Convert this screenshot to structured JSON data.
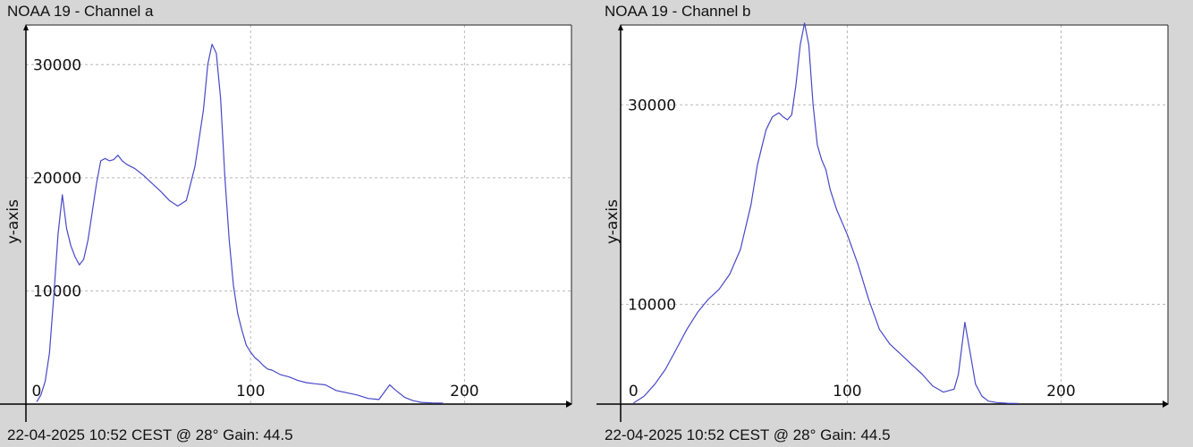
{
  "chart_data": [
    {
      "type": "line",
      "title": "NOAA 19 - Channel a",
      "footer": "22-04-2025 10:52 CEST @ 28° Gain: 44.5",
      "ylabel": "y-axis",
      "xlim": [
        -5,
        250
      ],
      "ylim": [
        0,
        33500
      ],
      "xticks": [
        0,
        100,
        200
      ],
      "yticks": [
        10000,
        20000,
        30000
      ],
      "grid": true,
      "color": "#4848c8",
      "series": [
        {
          "x": [
            0,
            2,
            4,
            6,
            8,
            10,
            12,
            14,
            16,
            18,
            20,
            22,
            24,
            26,
            28,
            30,
            32,
            34,
            36,
            38,
            40,
            42,
            44,
            46,
            48,
            50,
            54,
            58,
            62,
            66,
            70,
            74,
            78,
            80,
            82,
            84,
            86,
            88,
            90,
            92,
            94,
            96,
            98,
            100,
            102,
            104,
            106,
            108,
            110,
            114,
            118,
            122,
            126,
            130,
            135,
            140,
            145,
            150,
            155,
            160,
            165,
            168,
            172,
            176,
            180,
            185,
            190
          ],
          "y": [
            200,
            800,
            2000,
            4500,
            9500,
            15000,
            18500,
            15500,
            14000,
            13000,
            12300,
            12800,
            14500,
            17000,
            19500,
            21500,
            21700,
            21500,
            21600,
            22000,
            21500,
            21200,
            21000,
            20800,
            20500,
            20200,
            19500,
            18800,
            18000,
            17500,
            18000,
            21000,
            26000,
            30000,
            31800,
            31000,
            27000,
            20000,
            14500,
            10500,
            8000,
            6500,
            5200,
            4600,
            4100,
            3800,
            3400,
            3100,
            3000,
            2600,
            2400,
            2100,
            1900,
            1800,
            1700,
            1200,
            1000,
            800,
            500,
            400,
            1700,
            1200,
            600,
            300,
            150,
            100,
            80
          ]
        }
      ]
    },
    {
      "type": "line",
      "title": "NOAA 19 - Channel b",
      "footer": "22-04-2025 10:52 CEST @ 28° Gain: 44.5",
      "ylabel": "y-axis",
      "xlim": [
        -6,
        250
      ],
      "ylim": [
        0,
        38000
      ],
      "xticks": [
        0,
        100,
        200
      ],
      "yticks": [
        10000,
        30000
      ],
      "grid": true,
      "color": "#4848c8",
      "series": [
        {
          "x": [
            0,
            5,
            10,
            15,
            20,
            25,
            30,
            35,
            40,
            45,
            50,
            55,
            58,
            62,
            65,
            68,
            70,
            72,
            74,
            76,
            78,
            80,
            82,
            84,
            86,
            88,
            90,
            92,
            95,
            100,
            105,
            110,
            115,
            120,
            125,
            130,
            135,
            140,
            145,
            150,
            152,
            155,
            158,
            160,
            163,
            166,
            170,
            175,
            180
          ],
          "y": [
            100,
            800,
            2000,
            3500,
            5500,
            7500,
            9200,
            10500,
            11500,
            13000,
            15500,
            20000,
            24000,
            27500,
            28800,
            29200,
            28800,
            28500,
            29000,
            32000,
            36000,
            38200,
            36000,
            30000,
            26000,
            24500,
            23500,
            21500,
            19500,
            17000,
            14000,
            10500,
            7500,
            6000,
            5000,
            4000,
            3000,
            1800,
            1200,
            1500,
            3000,
            8200,
            4500,
            2000,
            800,
            300,
            150,
            80,
            60
          ]
        }
      ]
    }
  ]
}
